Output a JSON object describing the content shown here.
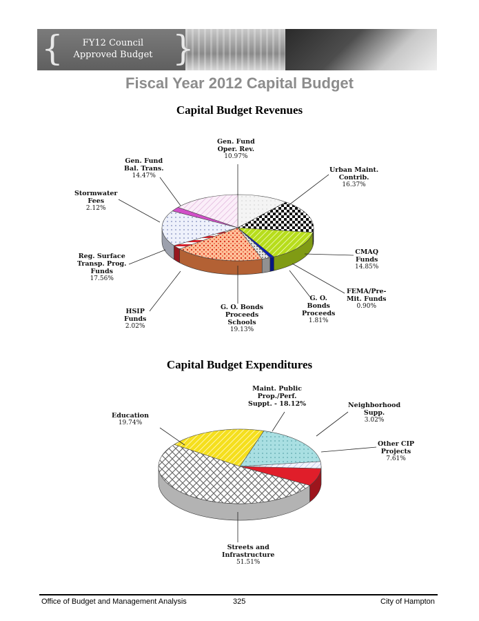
{
  "banner": {
    "line1": "FY12 Council",
    "line2": "Approved Budget"
  },
  "page_title": "Fiscal Year 2012 Capital Budget",
  "revenues": {
    "title": "Capital Budget Revenues",
    "labels": {
      "gen_fund_oper": [
        "Gen. Fund",
        "Oper. Rev."
      ],
      "gen_fund_bal": [
        "Gen. Fund",
        "Bal. Trans."
      ],
      "urban_maint": [
        "Urban Maint.",
        "Contrib."
      ],
      "stormwater": [
        "Stormwater",
        "Fees"
      ],
      "cmaq": [
        "CMAQ",
        "Funds"
      ],
      "reg_surface": [
        "Reg. Surface",
        "Transp. Prog.",
        "Funds"
      ],
      "fema": [
        "FEMA/Pre-",
        "Mit. Funds"
      ],
      "go_bonds": [
        "G. O.",
        "Bonds",
        "Proceeds"
      ],
      "go_bonds_schools": [
        "G. O. Bonds",
        "Proceeds",
        "Schools"
      ],
      "hsip": [
        "HSIP",
        "Funds"
      ]
    }
  },
  "expenditures": {
    "title": "Capital Budget Expenditures",
    "labels": {
      "maint_public": [
        "Maint. Public",
        "Prop./Perf.",
        "Suppt. - 18.12%"
      ],
      "education": [
        "Education"
      ],
      "neighborhood": [
        "Neighborhood",
        "Supp."
      ],
      "other_cip": [
        "Other CIP",
        "Projects"
      ],
      "streets": [
        "Streets and",
        "Infrastructure"
      ]
    }
  },
  "chart_data": [
    {
      "type": "pie",
      "title": "Capital Budget Revenues",
      "categories": [
        "Gen. Fund Oper. Rev.",
        "Urban Maint. Contrib.",
        "CMAQ Funds",
        "FEMA/Pre-Mit. Funds",
        "G. O. Bonds Proceeds",
        "G. O. Bonds Proceeds Schools",
        "HSIP Funds",
        "Reg. Surface Transp. Prog. Funds",
        "Stormwater Fees",
        "Gen. Fund Bal. Trans."
      ],
      "values": [
        10.97,
        16.37,
        14.85,
        0.9,
        1.81,
        19.13,
        2.02,
        17.56,
        2.12,
        14.47
      ],
      "labels": [
        "10.97%",
        "16.37%",
        "14.85%",
        "0.90%",
        "1.81%",
        "19.13%",
        "2.02%",
        "17.56%",
        "2.12%",
        "14.47%"
      ],
      "colors": [
        "#f2f2f2",
        "#111111",
        "#b7dd1c",
        "#0a1fb8",
        "#cfcfcf",
        "#ff8a4a",
        "#d8212b",
        "#dfe5f5",
        "#d24fc8",
        "#f3ddf0"
      ]
    },
    {
      "type": "pie",
      "title": "Capital Budget Expenditures",
      "categories": [
        "Maint. Public Prop./Perf. Suppt.",
        "Neighborhood Supp.",
        "Other CIP Projects",
        "Streets and Infrastructure",
        "Education"
      ],
      "values": [
        18.12,
        3.02,
        7.61,
        51.51,
        19.74
      ],
      "labels": [
        "18.12%",
        "3.02%",
        "7.61%",
        "51.51%",
        "19.74%"
      ],
      "colors": [
        "#a9dfe2",
        "#e4e7f7",
        "#e01e2a",
        "#ffffff",
        "#f5df1d"
      ]
    }
  ],
  "footer": {
    "office": "Office of Budget and Management Analysis",
    "page_number": "325",
    "city": "City of Hampton"
  }
}
